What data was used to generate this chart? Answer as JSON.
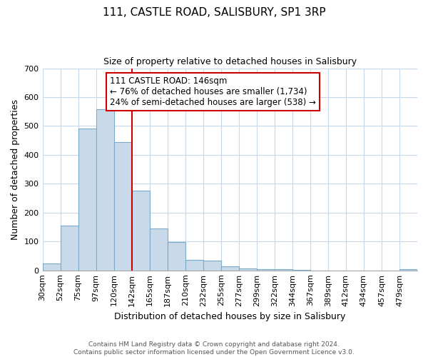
{
  "title": "111, CASTLE ROAD, SALISBURY, SP1 3RP",
  "subtitle": "Size of property relative to detached houses in Salisbury",
  "xlabel": "Distribution of detached houses by size in Salisbury",
  "ylabel": "Number of detached properties",
  "bin_labels": [
    "30sqm",
    "52sqm",
    "75sqm",
    "97sqm",
    "120sqm",
    "142sqm",
    "165sqm",
    "187sqm",
    "210sqm",
    "232sqm",
    "255sqm",
    "277sqm",
    "299sqm",
    "322sqm",
    "344sqm",
    "367sqm",
    "389sqm",
    "412sqm",
    "434sqm",
    "457sqm",
    "479sqm"
  ],
  "bar_values": [
    25,
    155,
    490,
    558,
    445,
    275,
    145,
    98,
    37,
    35,
    14,
    7,
    5,
    3,
    1,
    0,
    0,
    0,
    0,
    0,
    3
  ],
  "bar_color": "#c8daea",
  "bar_edge_color": "#7aaac8",
  "vline_x_index": 5,
  "vline_color": "#cc0000",
  "annotation_text": "111 CASTLE ROAD: 146sqm\n← 76% of detached houses are smaller (1,734)\n24% of semi-detached houses are larger (538) →",
  "annotation_box_color": "#ffffff",
  "annotation_box_edge": "#cc0000",
  "ylim": [
    0,
    700
  ],
  "yticks": [
    0,
    100,
    200,
    300,
    400,
    500,
    600,
    700
  ],
  "footer_line1": "Contains HM Land Registry data © Crown copyright and database right 2024.",
  "footer_line2": "Contains public sector information licensed under the Open Government Licence v3.0.",
  "bg_color": "#ffffff",
  "grid_color": "#c8d8e8",
  "title_fontsize": 11,
  "subtitle_fontsize": 9,
  "ylabel_fontsize": 9,
  "xlabel_fontsize": 9,
  "tick_fontsize": 8,
  "annot_fontsize": 8.5,
  "footer_fontsize": 6.5
}
